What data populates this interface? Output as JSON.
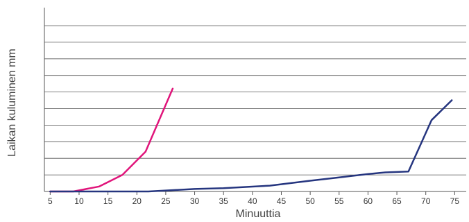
{
  "chart_data": {
    "type": "line",
    "title": "",
    "xlabel": "Minuuttia",
    "ylabel": "Laikan kuluminen mm",
    "xlim": [
      4,
      77
    ],
    "ylim": [
      0,
      10
    ],
    "xticks": [
      5,
      10,
      15,
      20,
      25,
      30,
      35,
      40,
      45,
      50,
      55,
      60,
      65,
      70,
      75
    ],
    "ygrid_values": [
      1,
      2,
      3,
      4,
      5,
      6,
      7,
      8,
      9,
      10
    ],
    "grid": "horizontal",
    "legend": "none",
    "series": [
      {
        "color": "#e0147a",
        "x": [
          5,
          9,
          13.5,
          17.5,
          21.5,
          26.2
        ],
        "y": [
          0,
          0,
          0.3,
          1.0,
          2.4,
          6.2
        ]
      },
      {
        "color": "#25357f",
        "x": [
          5,
          10,
          20,
          22,
          30,
          35,
          43,
          50,
          55,
          60,
          63,
          67,
          71,
          74.5
        ],
        "y": [
          0,
          0,
          0,
          0,
          0.15,
          0.2,
          0.35,
          0.65,
          0.85,
          1.05,
          1.15,
          1.2,
          4.3,
          5.5
        ]
      }
    ]
  }
}
